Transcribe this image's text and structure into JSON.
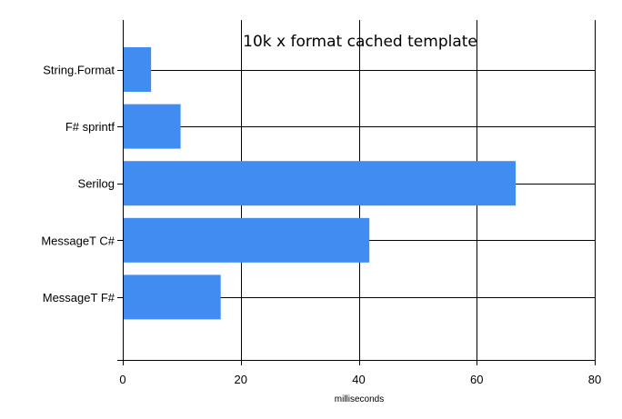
{
  "chart_data": {
    "type": "bar",
    "orientation": "horizontal",
    "title": "10k x format cached template",
    "xlabel": "milliseconds",
    "ylabel": "",
    "categories": [
      "String.Format",
      "F# sprintf",
      "Serilog",
      "MessageT C#",
      "MessageT F#"
    ],
    "values": [
      4.8,
      9.8,
      66.6,
      41.8,
      16.6
    ],
    "xlim": [
      0,
      80
    ],
    "xticks": [
      0,
      20,
      40,
      60,
      80
    ],
    "grid": true,
    "legend": "none",
    "bar_color": "#418CF0",
    "grid_color": "#000000"
  }
}
